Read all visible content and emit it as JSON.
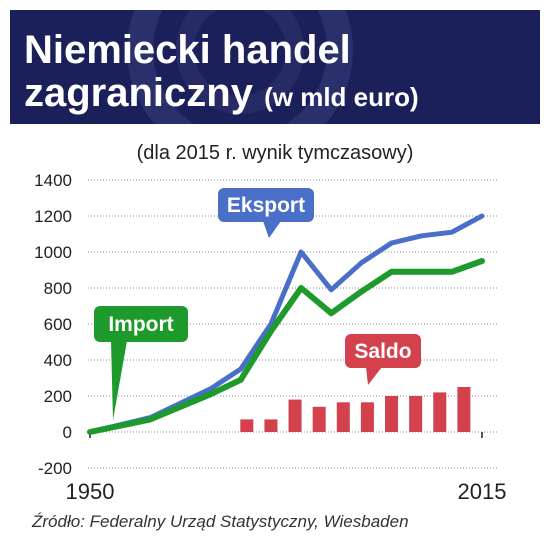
{
  "header": {
    "title_line1": "Niemiecki handel",
    "title_line2": "zagraniczny",
    "unit": "(w mld euro)"
  },
  "subtitle": "(dla 2015 r. wynik tymczasowy)",
  "source": "Źródło: Federalny Urząd Statystyczny, Wiesbaden",
  "colors": {
    "header_bg": "#1b1f5a",
    "export": "#4a6fc9",
    "import": "#1e9a2c",
    "saldo": "#d3414c",
    "grid": "#888888"
  },
  "chart_data": {
    "type": "line",
    "ylim": [
      -200,
      1400
    ],
    "yticks": [
      -200,
      0,
      200,
      400,
      600,
      800,
      1000,
      1200,
      1400
    ],
    "xlim": [
      1950,
      2015
    ],
    "x_tick_labels": [
      "1950",
      "2015"
    ],
    "grid": true,
    "series": [
      {
        "name": "Eksport",
        "kind": "line",
        "x": [
          1950,
          1960,
          1970,
          1975,
          1980,
          1985,
          1990,
          1995,
          2000,
          2005,
          2010,
          2015
        ],
        "values": [
          0,
          80,
          240,
          350,
          600,
          1000,
          790,
          940,
          1050,
          1090,
          1110,
          1200
        ]
      },
      {
        "name": "Import",
        "kind": "line",
        "x": [
          1950,
          1960,
          1970,
          1975,
          1980,
          1985,
          1990,
          1995,
          2000,
          2005,
          2010,
          2015
        ],
        "values": [
          0,
          70,
          210,
          290,
          560,
          800,
          660,
          780,
          890,
          890,
          890,
          950
        ]
      },
      {
        "name": "Saldo",
        "kind": "bar",
        "x": [
          1976,
          1980,
          1984,
          1988,
          1992,
          1996,
          2000,
          2004,
          2008,
          2012
        ],
        "values": [
          70,
          70,
          180,
          140,
          165,
          165,
          200,
          200,
          220,
          250
        ]
      }
    ]
  }
}
